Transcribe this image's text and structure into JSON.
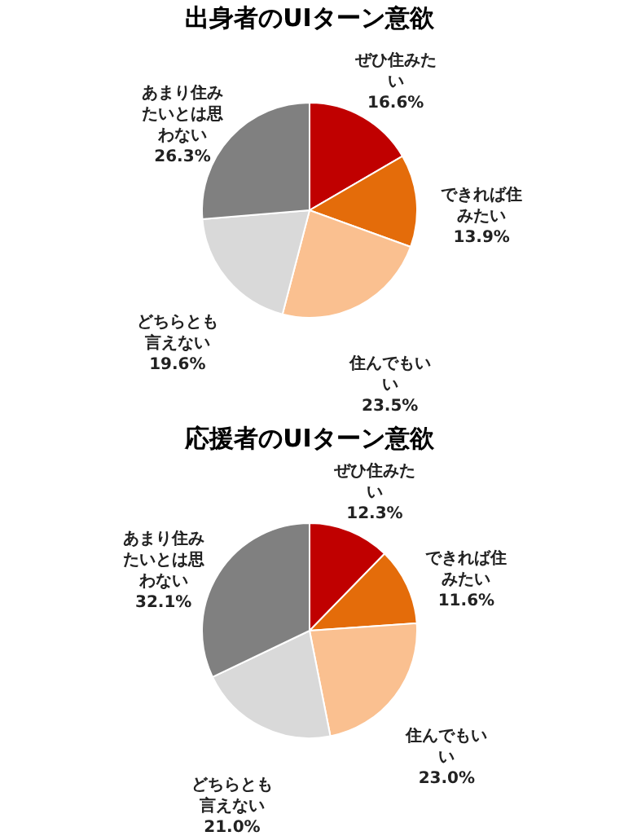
{
  "chart_data": [
    {
      "type": "pie",
      "title": "出身者のUIターン意欲",
      "categories": [
        "ぜひ住みたい",
        "できれば住みたい",
        "住んでもいい",
        "どちらとも言えない",
        "あまり住みたいとは思わない"
      ],
      "values": [
        16.6,
        13.9,
        23.5,
        19.6,
        26.3
      ],
      "value_labels": [
        "16.6%",
        "13.9%",
        "23.5%",
        "19.6%",
        "26.3%"
      ],
      "colors": [
        "#c00000",
        "#e46c0a",
        "#fac090",
        "#d9d9d9",
        "#808080"
      ]
    },
    {
      "type": "pie",
      "title": "応援者のUIターン意欲",
      "categories": [
        "ぜひ住みたい",
        "できれば住みたい",
        "住んでもいい",
        "どちらとも言えない",
        "あまり住みたいとは思わない"
      ],
      "values": [
        12.3,
        11.6,
        23.0,
        21.0,
        32.1
      ],
      "value_labels": [
        "12.3%",
        "11.6%",
        "23.0%",
        "21.0%",
        "32.1%"
      ],
      "colors": [
        "#c00000",
        "#e46c0a",
        "#fac090",
        "#d9d9d9",
        "#808080"
      ]
    }
  ]
}
